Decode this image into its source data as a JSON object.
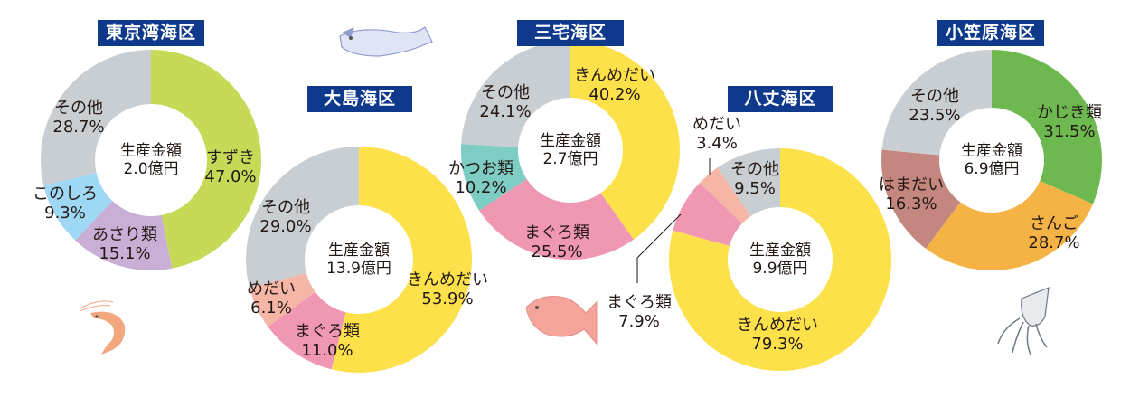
{
  "chart_data": [
    {
      "type": "pie",
      "title": "東京湾海区",
      "center_label": [
        "生産金額",
        "2.0億円"
      ],
      "categories": [
        "すずき",
        "あさり類",
        "このしろ",
        "その他"
      ],
      "values": [
        47.0,
        15.1,
        9.3,
        28.7
      ],
      "colors": [
        "#c6da58",
        "#c9afd5",
        "#9fd8f4",
        "#c8ced1"
      ]
    },
    {
      "type": "pie",
      "title": "大島海区",
      "center_label": [
        "生産金額",
        "13.9億円"
      ],
      "categories": [
        "きんめだい",
        "まぐろ類",
        "めだい",
        "その他"
      ],
      "values": [
        53.9,
        11.0,
        6.1,
        29.0
      ],
      "colors": [
        "#fde14b",
        "#ef97b3",
        "#f5b6a6",
        "#c8ced1"
      ]
    },
    {
      "type": "pie",
      "title": "三宅海区",
      "center_label": [
        "生産金額",
        "2.7億円"
      ],
      "categories": [
        "きんめだい",
        "まぐろ類",
        "かつお類",
        "その他"
      ],
      "values": [
        40.2,
        25.5,
        10.2,
        24.1
      ],
      "colors": [
        "#fde14b",
        "#ef97b3",
        "#7dcdc5",
        "#c8ced1"
      ]
    },
    {
      "type": "pie",
      "title": "八丈海区",
      "center_label": [
        "生産金額",
        "9.9億円"
      ],
      "categories": [
        "きんめだい",
        "まぐろ類",
        "めだい",
        "その他"
      ],
      "values": [
        79.3,
        7.9,
        3.4,
        9.5
      ],
      "colors": [
        "#fde14b",
        "#ef97b3",
        "#f5b6a6",
        "#c8ced1"
      ]
    },
    {
      "type": "pie",
      "title": "小笠原海区",
      "center_label": [
        "生産金額",
        "6.9億円"
      ],
      "categories": [
        "かじき類",
        "さんご",
        "はまだい",
        "その他"
      ],
      "values": [
        31.5,
        28.7,
        16.3,
        23.5
      ],
      "colors": [
        "#6db94f",
        "#f5b245",
        "#c4877f",
        "#c8ced1"
      ]
    }
  ],
  "decorations": [
    "fish-icon",
    "shrimp-icon",
    "sea-bream-icon",
    "squid-icon"
  ]
}
